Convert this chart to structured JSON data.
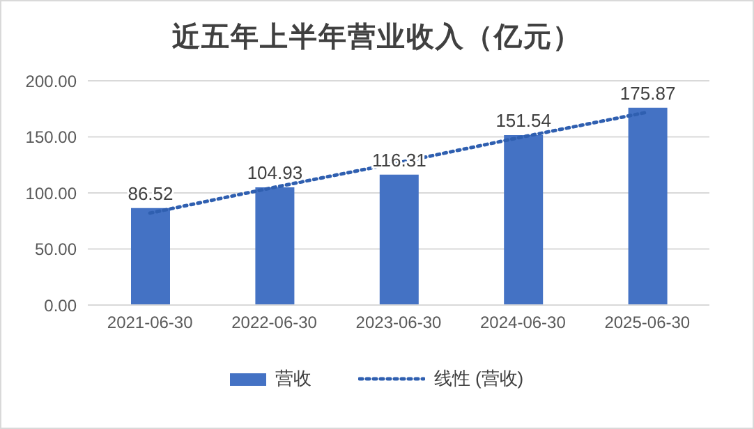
{
  "chart_data": {
    "type": "bar",
    "title": "近五年上半年营业收入（亿元）",
    "categories": [
      "2021-06-30",
      "2022-06-30",
      "2023-06-30",
      "2024-06-30",
      "2025-06-30"
    ],
    "series": [
      {
        "name": "营收",
        "color": "#4472c4",
        "values": [
          86.52,
          104.93,
          116.31,
          151.54,
          175.87
        ],
        "value_labels": [
          "86.52",
          "104.93",
          "116.31",
          "151.54",
          "175.87"
        ]
      },
      {
        "name": "线性 (营收)",
        "type": "line",
        "color": "#2f5fb0",
        "line_style": "dotted",
        "marker": "none",
        "values": [
          82,
          105,
          127,
          150,
          172
        ]
      }
    ],
    "ylim": [
      0,
      200
    ],
    "yticks": [
      {
        "value": 0,
        "label": "0.00"
      },
      {
        "value": 50,
        "label": "50.00"
      },
      {
        "value": 100,
        "label": "100.00"
      },
      {
        "value": 150,
        "label": "150.00"
      },
      {
        "value": 200,
        "label": "200.00"
      }
    ],
    "grid": "y",
    "legend": "bottom"
  }
}
